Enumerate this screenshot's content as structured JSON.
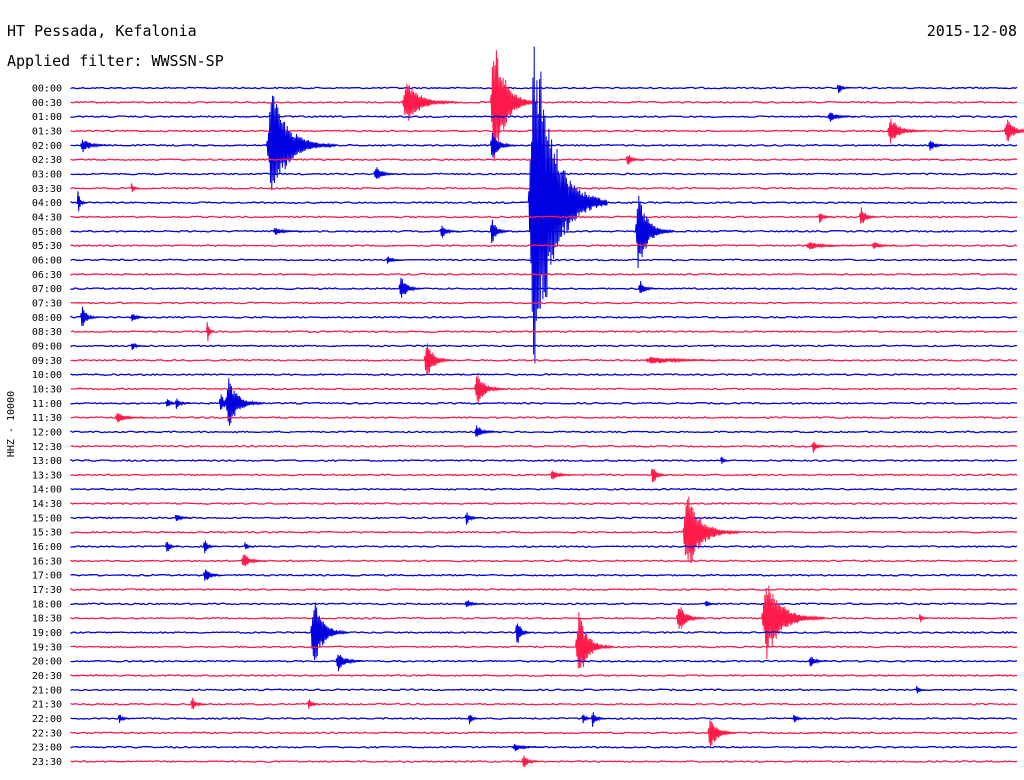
{
  "header": {
    "station": "HT Pessada, Kefalonia",
    "date": "2015-12-08",
    "filter": "Applied filter: WWSSN-SP"
  },
  "colors": {
    "even_trace": "#0000e0",
    "odd_trace": "#ff1a4a",
    "text": "#000000",
    "background": "#ffffff"
  },
  "chart_data": {
    "type": "line",
    "title": "HT Pessada, Kefalonia",
    "ylabel": "HHZ - 10000",
    "row_labels": [
      "00:00",
      "00:30",
      "01:00",
      "01:30",
      "02:00",
      "02:30",
      "03:00",
      "03:30",
      "04:00",
      "04:30",
      "05:00",
      "05:30",
      "06:00",
      "06:30",
      "07:00",
      "07:30",
      "08:00",
      "08:30",
      "09:00",
      "09:30",
      "10:00",
      "10:30",
      "11:00",
      "11:30",
      "12:00",
      "12:30",
      "13:00",
      "13:30",
      "14:00",
      "14:30",
      "15:00",
      "15:30",
      "16:00",
      "16:30",
      "17:00",
      "17:30",
      "18:00",
      "18:30",
      "19:00",
      "19:30",
      "20:00",
      "20:30",
      "21:00",
      "21:30",
      "22:00",
      "22:30",
      "23:00",
      "23:30"
    ],
    "minutes_per_row": 30,
    "trace_colors": [
      "#0000e0",
      "#ff1a4a"
    ],
    "events": [
      {
        "row": 0,
        "minute": 24.3,
        "amp_rows": 0.5,
        "dur_min": 0.4
      },
      {
        "row": 1,
        "minute": 10.5,
        "amp_rows": 1.6,
        "dur_min": 1.8
      },
      {
        "row": 1,
        "minute": 13.3,
        "amp_rows": 4.8,
        "dur_min": 1.5
      },
      {
        "row": 2,
        "minute": 24.0,
        "amp_rows": 0.4,
        "dur_min": 0.9
      },
      {
        "row": 3,
        "minute": 25.9,
        "amp_rows": 1.0,
        "dur_min": 1.2
      },
      {
        "row": 3,
        "minute": 29.6,
        "amp_rows": 0.9,
        "dur_min": 1.0
      },
      {
        "row": 4,
        "minute": 0.3,
        "amp_rows": 0.5,
        "dur_min": 1.0
      },
      {
        "row": 4,
        "minute": 6.2,
        "amp_rows": 3.9,
        "dur_min": 2.2
      },
      {
        "row": 4,
        "minute": 13.3,
        "amp_rows": 1.2,
        "dur_min": 0.8
      },
      {
        "row": 4,
        "minute": 14.6,
        "amp_rows": 0.4,
        "dur_min": 0.6
      },
      {
        "row": 4,
        "minute": 27.2,
        "amp_rows": 0.5,
        "dur_min": 0.6
      },
      {
        "row": 5,
        "minute": 17.6,
        "amp_rows": 0.5,
        "dur_min": 0.6
      },
      {
        "row": 6,
        "minute": 9.6,
        "amp_rows": 0.6,
        "dur_min": 0.8
      },
      {
        "row": 7,
        "minute": 1.9,
        "amp_rows": 0.5,
        "dur_min": 0.3
      },
      {
        "row": 8,
        "minute": 0.2,
        "amp_rows": 0.9,
        "dur_min": 0.3
      },
      {
        "row": 8,
        "minute": 14.5,
        "amp_rows": 13.5,
        "dur_min": 2.5
      },
      {
        "row": 9,
        "minute": 23.7,
        "amp_rows": 0.5,
        "dur_min": 0.5
      },
      {
        "row": 9,
        "minute": 25.0,
        "amp_rows": 0.9,
        "dur_min": 0.6
      },
      {
        "row": 10,
        "minute": 6.4,
        "amp_rows": 0.3,
        "dur_min": 1.0
      },
      {
        "row": 10,
        "minute": 11.7,
        "amp_rows": 0.6,
        "dur_min": 0.6
      },
      {
        "row": 10,
        "minute": 13.3,
        "amp_rows": 1.0,
        "dur_min": 0.6
      },
      {
        "row": 10,
        "minute": 17.9,
        "amp_rows": 3.0,
        "dur_min": 1.2
      },
      {
        "row": 11,
        "minute": 23.3,
        "amp_rows": 0.3,
        "dur_min": 1.5
      },
      {
        "row": 11,
        "minute": 25.4,
        "amp_rows": 0.3,
        "dur_min": 0.8
      },
      {
        "row": 12,
        "minute": 10.0,
        "amp_rows": 0.3,
        "dur_min": 0.6
      },
      {
        "row": 14,
        "minute": 10.4,
        "amp_rows": 0.9,
        "dur_min": 0.8
      },
      {
        "row": 14,
        "minute": 18.0,
        "amp_rows": 0.6,
        "dur_min": 0.6
      },
      {
        "row": 16,
        "minute": 0.3,
        "amp_rows": 0.9,
        "dur_min": 0.6
      },
      {
        "row": 16,
        "minute": 1.9,
        "amp_rows": 0.4,
        "dur_min": 0.5
      },
      {
        "row": 17,
        "minute": 4.3,
        "amp_rows": 1.0,
        "dur_min": 0.2
      },
      {
        "row": 18,
        "minute": 1.9,
        "amp_rows": 0.3,
        "dur_min": 0.5
      },
      {
        "row": 19,
        "minute": 11.2,
        "amp_rows": 1.5,
        "dur_min": 0.9
      },
      {
        "row": 19,
        "minute": 18.2,
        "amp_rows": 0.3,
        "dur_min": 3.0
      },
      {
        "row": 21,
        "minute": 12.8,
        "amp_rows": 1.3,
        "dur_min": 1.0
      },
      {
        "row": 22,
        "minute": 3.0,
        "amp_rows": 0.4,
        "dur_min": 0.5
      },
      {
        "row": 22,
        "minute": 3.3,
        "amp_rows": 0.5,
        "dur_min": 0.5
      },
      {
        "row": 22,
        "minute": 4.7,
        "amp_rows": 0.7,
        "dur_min": 0.6
      },
      {
        "row": 22,
        "minute": 4.9,
        "amp_rows": 1.9,
        "dur_min": 1.2
      },
      {
        "row": 23,
        "minute": 1.4,
        "amp_rows": 0.4,
        "dur_min": 1.0
      },
      {
        "row": 24,
        "minute": 12.8,
        "amp_rows": 0.5,
        "dur_min": 0.8
      },
      {
        "row": 25,
        "minute": 23.5,
        "amp_rows": 0.5,
        "dur_min": 0.5
      },
      {
        "row": 26,
        "minute": 20.6,
        "amp_rows": 0.4,
        "dur_min": 0.3
      },
      {
        "row": 27,
        "minute": 15.2,
        "amp_rows": 0.4,
        "dur_min": 0.8
      },
      {
        "row": 27,
        "minute": 18.4,
        "amp_rows": 0.9,
        "dur_min": 0.5
      },
      {
        "row": 30,
        "minute": 3.3,
        "amp_rows": 0.4,
        "dur_min": 0.5
      },
      {
        "row": 30,
        "minute": 12.5,
        "amp_rows": 0.5,
        "dur_min": 0.5
      },
      {
        "row": 31,
        "minute": 19.4,
        "amp_rows": 3.0,
        "dur_min": 1.8
      },
      {
        "row": 32,
        "minute": 3.0,
        "amp_rows": 0.6,
        "dur_min": 0.4
      },
      {
        "row": 32,
        "minute": 4.2,
        "amp_rows": 0.6,
        "dur_min": 0.4
      },
      {
        "row": 32,
        "minute": 5.5,
        "amp_rows": 0.4,
        "dur_min": 0.3
      },
      {
        "row": 33,
        "minute": 5.4,
        "amp_rows": 0.6,
        "dur_min": 0.8
      },
      {
        "row": 34,
        "minute": 4.2,
        "amp_rows": 0.6,
        "dur_min": 0.6
      },
      {
        "row": 36,
        "minute": 12.5,
        "amp_rows": 0.4,
        "dur_min": 0.6
      },
      {
        "row": 36,
        "minute": 20.1,
        "amp_rows": 0.3,
        "dur_min": 0.4
      },
      {
        "row": 37,
        "minute": 19.2,
        "amp_rows": 1.2,
        "dur_min": 0.9
      },
      {
        "row": 37,
        "minute": 21.9,
        "amp_rows": 3.0,
        "dur_min": 2.0
      },
      {
        "row": 37,
        "minute": 26.9,
        "amp_rows": 0.4,
        "dur_min": 0.3
      },
      {
        "row": 38,
        "minute": 7.6,
        "amp_rows": 2.6,
        "dur_min": 1.2
      },
      {
        "row": 38,
        "minute": 14.1,
        "amp_rows": 1.1,
        "dur_min": 0.5
      },
      {
        "row": 39,
        "minute": 16.0,
        "amp_rows": 2.6,
        "dur_min": 1.2
      },
      {
        "row": 40,
        "minute": 8.4,
        "amp_rows": 0.8,
        "dur_min": 0.9
      },
      {
        "row": 40,
        "minute": 23.4,
        "amp_rows": 0.5,
        "dur_min": 0.6
      },
      {
        "row": 42,
        "minute": 26.8,
        "amp_rows": 0.4,
        "dur_min": 0.3
      },
      {
        "row": 43,
        "minute": 3.8,
        "amp_rows": 0.6,
        "dur_min": 0.5
      },
      {
        "row": 43,
        "minute": 7.5,
        "amp_rows": 0.5,
        "dur_min": 0.4
      },
      {
        "row": 44,
        "minute": 1.5,
        "amp_rows": 0.4,
        "dur_min": 0.4
      },
      {
        "row": 44,
        "minute": 12.6,
        "amp_rows": 0.5,
        "dur_min": 0.4
      },
      {
        "row": 44,
        "minute": 16.2,
        "amp_rows": 0.4,
        "dur_min": 0.4
      },
      {
        "row": 44,
        "minute": 16.5,
        "amp_rows": 0.6,
        "dur_min": 0.5
      },
      {
        "row": 44,
        "minute": 22.9,
        "amp_rows": 0.4,
        "dur_min": 0.4
      },
      {
        "row": 45,
        "minute": 20.2,
        "amp_rows": 1.3,
        "dur_min": 0.9
      },
      {
        "row": 46,
        "minute": 14.0,
        "amp_rows": 0.3,
        "dur_min": 1.0
      },
      {
        "row": 47,
        "minute": 14.3,
        "amp_rows": 0.6,
        "dur_min": 0.6
      }
    ]
  }
}
